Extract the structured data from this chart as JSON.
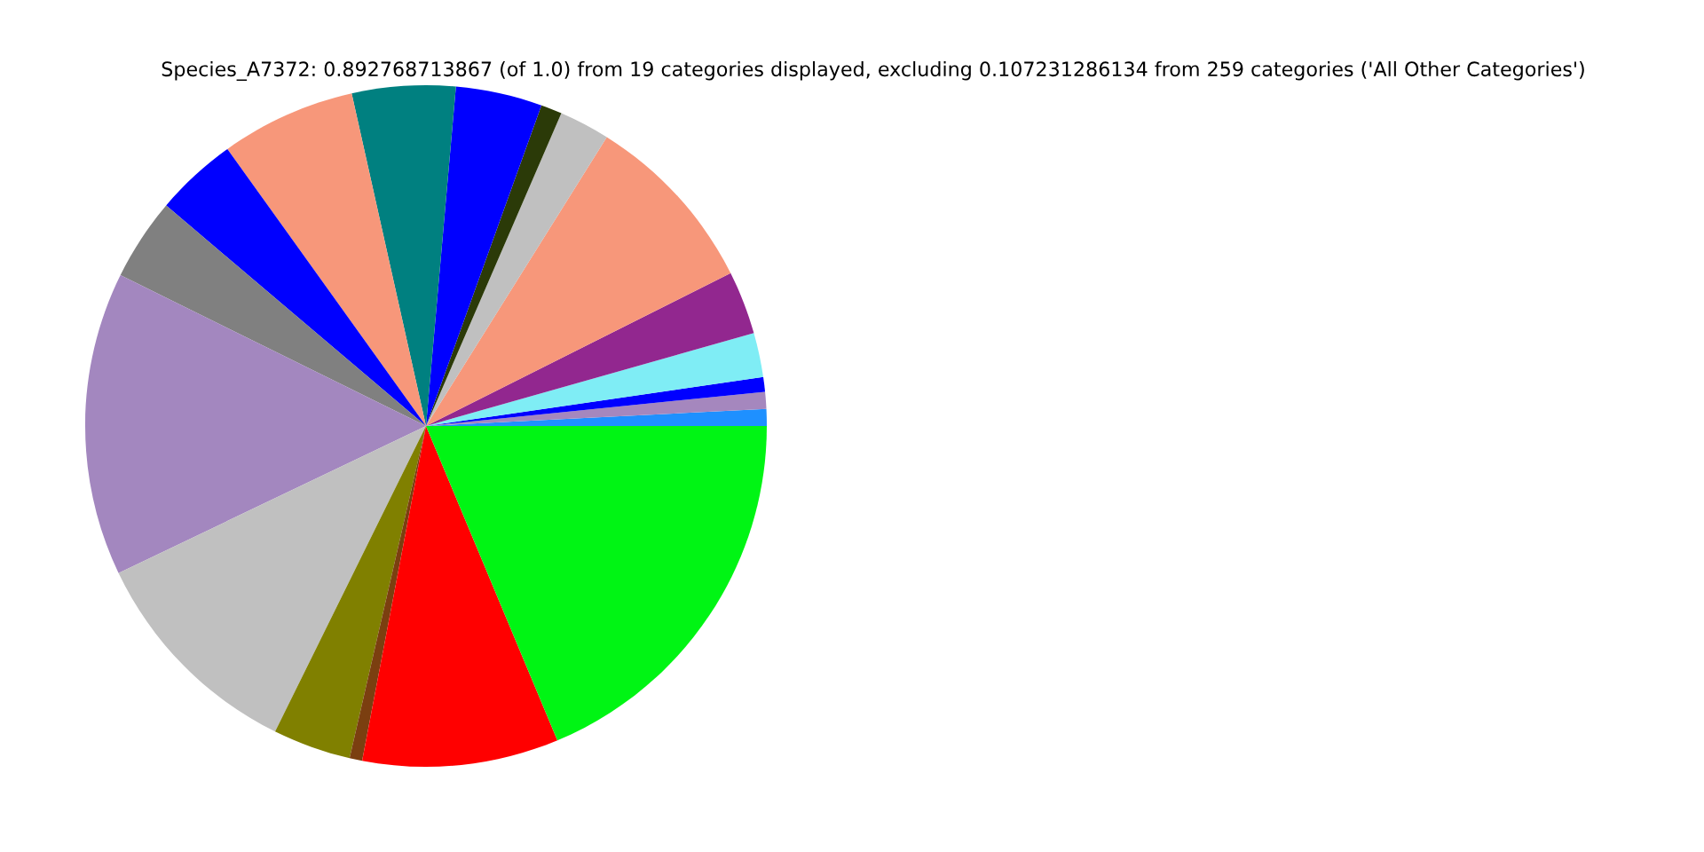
{
  "chart_data": {
    "type": "pie",
    "title": "Species_A7372: 0.892768713867 (of 1.0) from 19 categories displayed, excluding 0.107231286134 from 259 categories ('All Other Categories')",
    "categories": [
      null,
      null,
      null,
      null,
      null,
      null,
      null,
      null,
      null,
      null,
      null,
      null,
      null,
      null,
      null,
      null,
      null,
      null,
      null
    ],
    "values": [
      0.8,
      0.8,
      0.7,
      2.1,
      3.0,
      8.7,
      2.4,
      1.0,
      4.1,
      4.9,
      6.4,
      3.9,
      3.9,
      14.4,
      10.6,
      3.7,
      0.6,
      9.3,
      18.7
    ],
    "colors": [
      "#1e90ff",
      "#a587be",
      "#0000ff",
      "#7fedf5",
      "#92278f",
      "#f7977a",
      "#c0c0c0",
      "#2b3a08",
      "#0000ff",
      "#008080",
      "#f7977a",
      "#0000ff",
      "#808080",
      "#a387bf",
      "#c0c0c0",
      "#808000",
      "#7b3f10",
      "#ff0000",
      "#00f514"
    ]
  }
}
